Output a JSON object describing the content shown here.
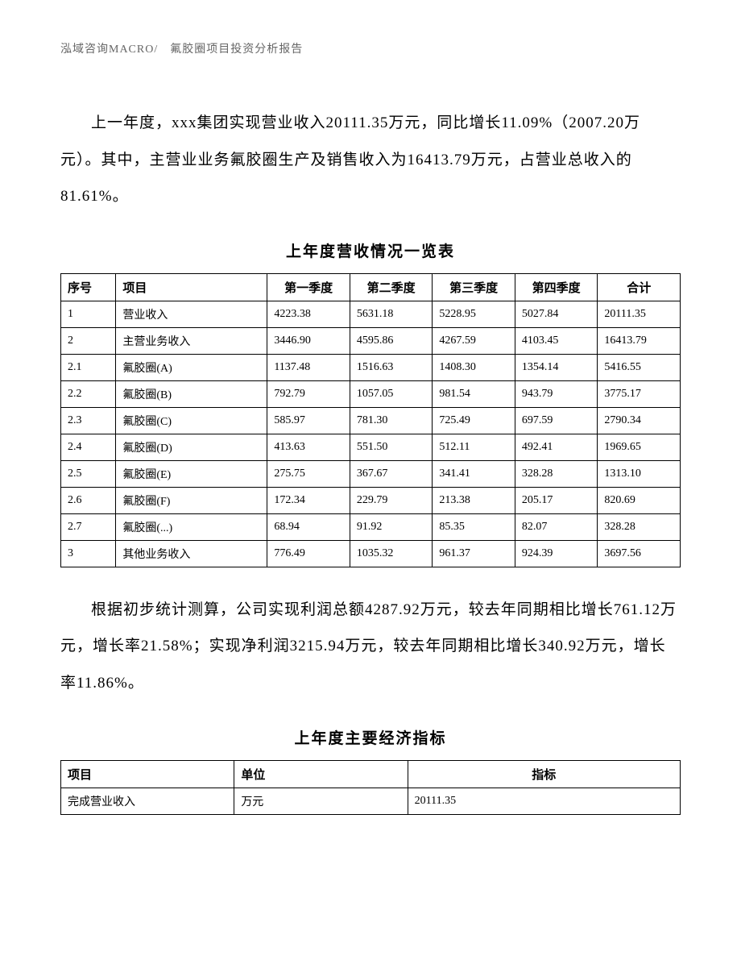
{
  "header": {
    "text": "泓域咨询MACRO/　氟胶圈项目投资分析报告"
  },
  "paragraph1": "上一年度，xxx集团实现营业收入20111.35万元，同比增长11.09%（2007.20万元）。其中，主营业业务氟胶圈生产及销售收入为16413.79万元，占营业总收入的81.61%。",
  "table1": {
    "title": "上年度营收情况一览表",
    "headers": {
      "seq": "序号",
      "item": "项目",
      "q1": "第一季度",
      "q2": "第二季度",
      "q3": "第三季度",
      "q4": "第四季度",
      "total": "合计"
    },
    "rows": [
      {
        "seq": "1",
        "item": "营业收入",
        "q1": "4223.38",
        "q2": "5631.18",
        "q3": "5228.95",
        "q4": "5027.84",
        "total": "20111.35"
      },
      {
        "seq": "2",
        "item": "主营业务收入",
        "q1": "3446.90",
        "q2": "4595.86",
        "q3": "4267.59",
        "q4": "4103.45",
        "total": "16413.79"
      },
      {
        "seq": "2.1",
        "item": "氟胶圈(A)",
        "q1": "1137.48",
        "q2": "1516.63",
        "q3": "1408.30",
        "q4": "1354.14",
        "total": "5416.55"
      },
      {
        "seq": "2.2",
        "item": "氟胶圈(B)",
        "q1": "792.79",
        "q2": "1057.05",
        "q3": "981.54",
        "q4": "943.79",
        "total": "3775.17"
      },
      {
        "seq": "2.3",
        "item": "氟胶圈(C)",
        "q1": "585.97",
        "q2": "781.30",
        "q3": "725.49",
        "q4": "697.59",
        "total": "2790.34"
      },
      {
        "seq": "2.4",
        "item": "氟胶圈(D)",
        "q1": "413.63",
        "q2": "551.50",
        "q3": "512.11",
        "q4": "492.41",
        "total": "1969.65"
      },
      {
        "seq": "2.5",
        "item": "氟胶圈(E)",
        "q1": "275.75",
        "q2": "367.67",
        "q3": "341.41",
        "q4": "328.28",
        "total": "1313.10"
      },
      {
        "seq": "2.6",
        "item": "氟胶圈(F)",
        "q1": "172.34",
        "q2": "229.79",
        "q3": "213.38",
        "q4": "205.17",
        "total": "820.69"
      },
      {
        "seq": "2.7",
        "item": "氟胶圈(...)",
        "q1": "68.94",
        "q2": "91.92",
        "q3": "85.35",
        "q4": "82.07",
        "total": "328.28"
      },
      {
        "seq": "3",
        "item": "其他业务收入",
        "q1": "776.49",
        "q2": "1035.32",
        "q3": "961.37",
        "q4": "924.39",
        "total": "3697.56"
      }
    ]
  },
  "paragraph2": "根据初步统计测算，公司实现利润总额4287.92万元，较去年同期相比增长761.12万元，增长率21.58%；实现净利润3215.94万元，较去年同期相比增长340.92万元，增长率11.86%。",
  "table2": {
    "title": "上年度主要经济指标",
    "headers": {
      "item": "项目",
      "unit": "单位",
      "value": "指标"
    },
    "rows": [
      {
        "item": "完成营业收入",
        "unit": "万元",
        "value": "20111.35"
      }
    ]
  }
}
